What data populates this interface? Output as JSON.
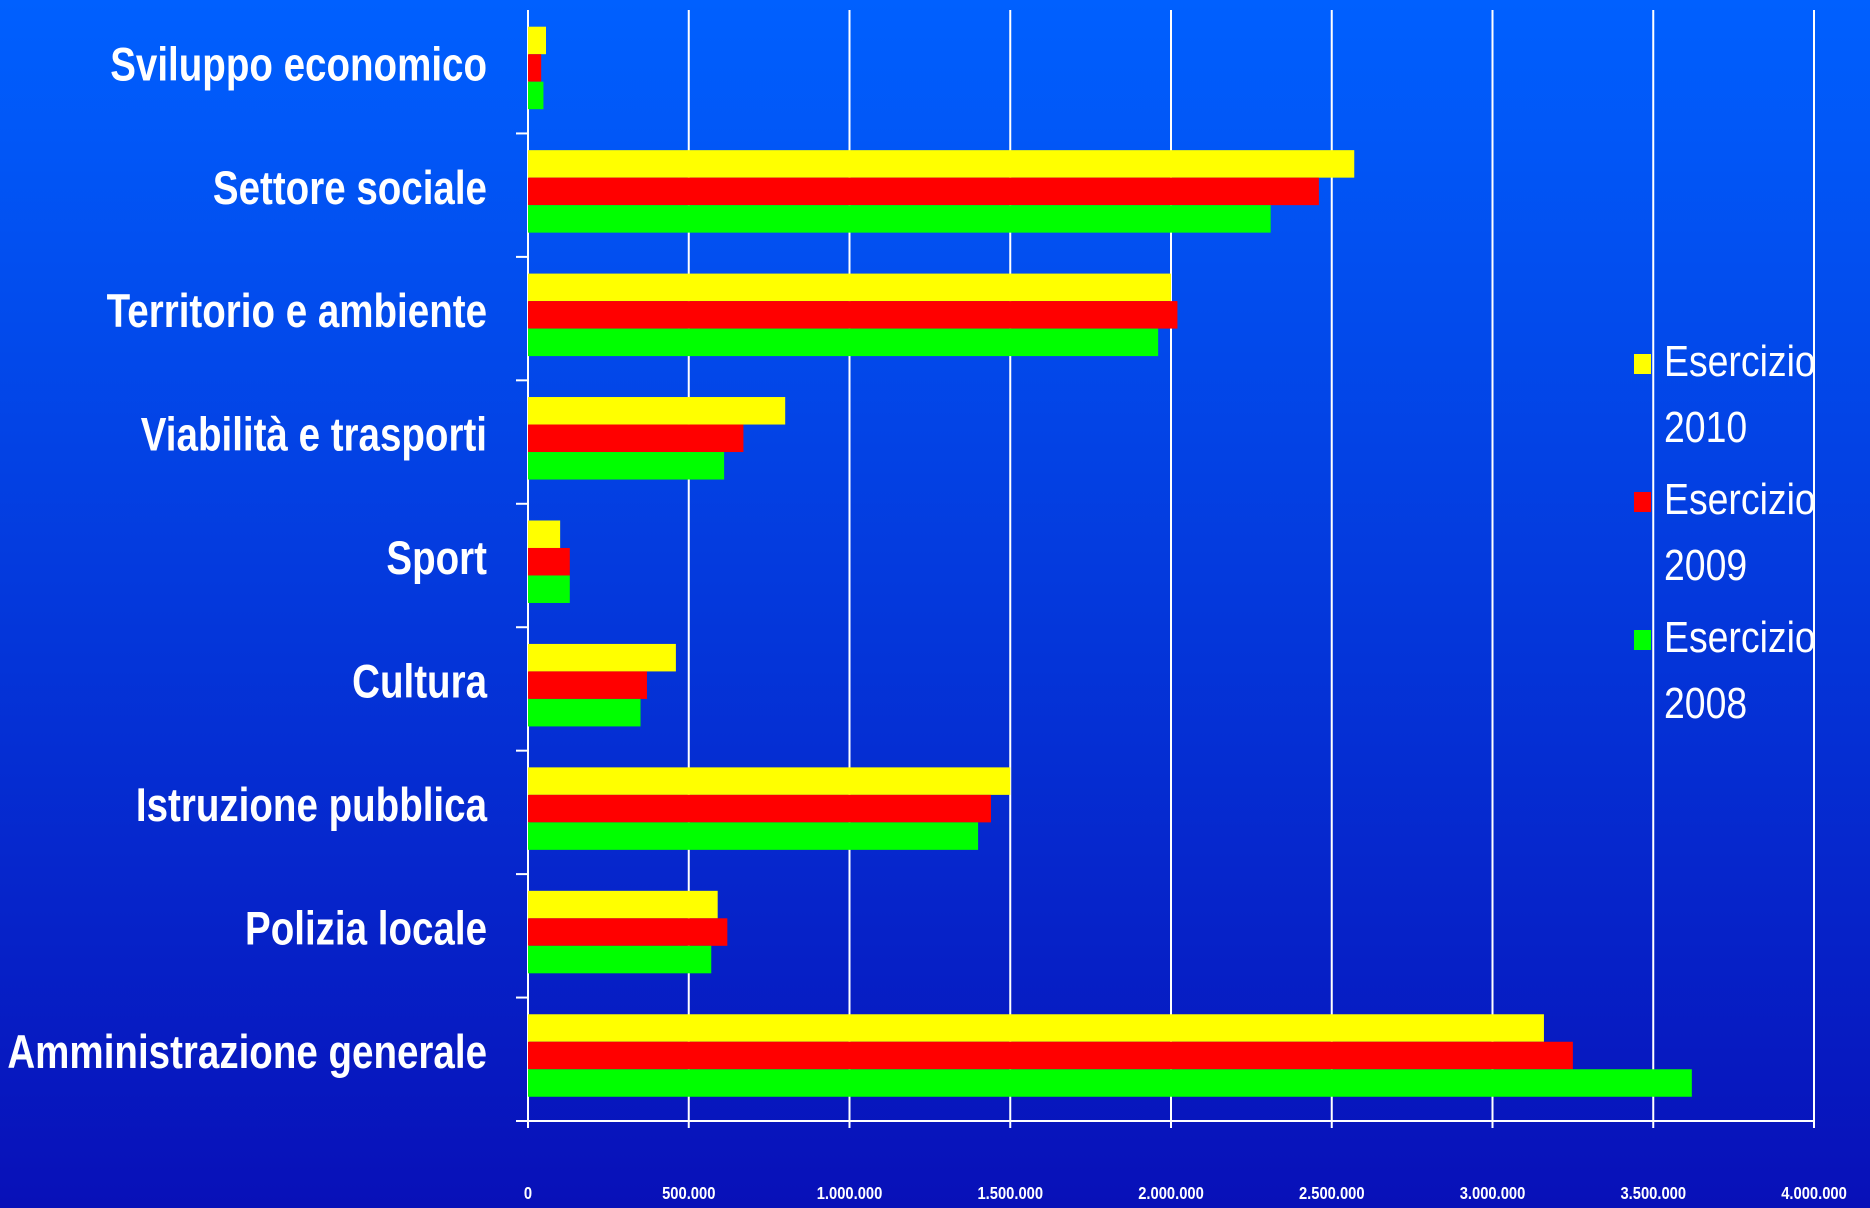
{
  "chart_data": {
    "type": "bar",
    "orientation": "horizontal",
    "categories": [
      "Sviluppo economico",
      "Settore sociale",
      "Territorio e ambiente",
      "Viabilità e trasporti",
      "Sport",
      "Cultura",
      "Istruzione pubblica",
      "Polizia locale",
      "Amministrazione generale"
    ],
    "series": [
      {
        "name": "Esercizio 2010",
        "color": "#ffff00",
        "values": [
          56000,
          2570000,
          2000000,
          800000,
          100000,
          460000,
          1500000,
          590000,
          3160000
        ]
      },
      {
        "name": "Esercizio 2009",
        "color": "#ff0000",
        "values": [
          41000,
          2460000,
          2020000,
          670000,
          130000,
          370000,
          1440000,
          620000,
          3250000
        ]
      },
      {
        "name": "Esercizio 2008",
        "color": "#00ff00",
        "values": [
          48000,
          2310000,
          1960000,
          610000,
          130000,
          350000,
          1400000,
          570000,
          3620000
        ]
      }
    ],
    "xlim": [
      0,
      4000000
    ],
    "xticks": [
      0,
      {
        "value": 500000,
        "label": "500.000"
      },
      {
        "value": 1000000,
        "label": "1.000.000"
      },
      {
        "value": 1500000,
        "label": "1.500.000"
      },
      {
        "value": 2000000,
        "label": "2.000.000"
      },
      {
        "value": 2500000,
        "label": "2.500.000"
      },
      {
        "value": 3000000,
        "label": "3.000.000"
      },
      {
        "value": 3500000,
        "label": "3.500.000"
      },
      {
        "value": 4000000,
        "label": "4.000.000"
      }
    ],
    "grid": true,
    "legend": "right"
  }
}
